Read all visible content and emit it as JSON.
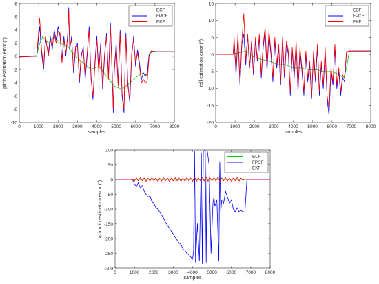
{
  "chart_data": [
    {
      "type": "line",
      "title": "",
      "xlabel": "samples",
      "ylabel": "pitch estimation error (°)",
      "xlim": [
        0,
        8000
      ],
      "ylim": [
        -10,
        8
      ],
      "xticks": [
        0,
        1000,
        2000,
        3000,
        4000,
        5000,
        6000,
        7000,
        8000
      ],
      "yticks": [
        -10,
        -8,
        -6,
        -4,
        -2,
        0,
        2,
        4,
        6,
        8
      ],
      "grid": false,
      "legend_position": "top-right",
      "series": [
        {
          "name": "ECF",
          "color": "#00cc00",
          "x": [
            0,
            900,
            1000,
            1200,
            1500,
            1800,
            2100,
            2500,
            2900,
            3300,
            3700,
            4100,
            4500,
            4900,
            5300,
            5700,
            6100,
            6400,
            6600,
            6700,
            6900,
            7100,
            8000
          ],
          "y": [
            -0.1,
            0.1,
            1.5,
            3.0,
            2.0,
            3.0,
            2.0,
            1.5,
            0.0,
            -1.0,
            -2.0,
            -1.5,
            -3.0,
            -4.5,
            -5.0,
            -4.0,
            -3.0,
            -2.5,
            -3.0,
            0.3,
            0.8,
            0.7,
            0.7
          ]
        },
        {
          "name": "FPCF",
          "color": "#0000ff",
          "x": [
            0,
            900,
            950,
            1050,
            1150,
            1250,
            1350,
            1500,
            1600,
            1700,
            1800,
            1900,
            2000,
            2100,
            2200,
            2300,
            2400,
            2500,
            2550,
            2600,
            2700,
            2800,
            2900,
            3000,
            3100,
            3200,
            3300,
            3400,
            3500,
            3600,
            3700,
            3800,
            3900,
            4000,
            4100,
            4200,
            4300,
            4400,
            4500,
            4600,
            4700,
            4800,
            4850,
            4900,
            5000,
            5100,
            5200,
            5300,
            5400,
            5500,
            5600,
            5700,
            5800,
            5900,
            6000,
            6100,
            6200,
            6300,
            6400,
            6500,
            6600,
            6700,
            6800,
            7000,
            8000
          ],
          "y": [
            -0.1,
            0.0,
            1.5,
            4.5,
            0.5,
            -2.0,
            2.5,
            0.5,
            3.0,
            1.0,
            4.0,
            2.5,
            4.5,
            3.0,
            -0.5,
            3.0,
            0.0,
            3.5,
            7.4,
            1.0,
            3.0,
            -2.5,
            1.0,
            2.0,
            -4.0,
            0.0,
            1.5,
            -3.5,
            0.0,
            4.5,
            -3.0,
            -6.5,
            -1.0,
            3.0,
            -2.0,
            2.0,
            -5.0,
            0.0,
            3.5,
            -3.0,
            5.0,
            -3.0,
            -8.5,
            -2.0,
            2.0,
            -4.0,
            4.0,
            -6.0,
            -8.5,
            3.5,
            -4.0,
            -7.0,
            0.0,
            3.0,
            -1.5,
            1.0,
            -1.0,
            -3.5,
            -2.5,
            -3.0,
            -2.5,
            0.3,
            0.8,
            0.7,
            0.7
          ]
        },
        {
          "name": "EKF",
          "color": "#ff0000",
          "x": [
            0,
            900,
            950,
            1050,
            1150,
            1250,
            1350,
            1500,
            1600,
            1700,
            1800,
            1900,
            2000,
            2100,
            2200,
            2300,
            2400,
            2500,
            2550,
            2600,
            2700,
            2800,
            2900,
            3000,
            3100,
            3200,
            3300,
            3400,
            3500,
            3600,
            3700,
            3800,
            3900,
            4000,
            4100,
            4200,
            4300,
            4400,
            4500,
            4600,
            4700,
            4800,
            4850,
            4900,
            5000,
            5100,
            5200,
            5300,
            5400,
            5500,
            5600,
            5700,
            5800,
            5900,
            6000,
            6100,
            6200,
            6300,
            6400,
            6500,
            6600,
            6700,
            6800,
            7000,
            8000
          ],
          "y": [
            -0.1,
            0.0,
            2.0,
            5.8,
            1.0,
            -1.5,
            3.0,
            0.0,
            2.5,
            1.5,
            3.5,
            2.0,
            3.8,
            3.5,
            -1.0,
            2.5,
            0.5,
            3.0,
            7.0,
            1.5,
            2.5,
            -2.0,
            1.5,
            1.5,
            -3.5,
            0.5,
            1.0,
            -3.0,
            0.5,
            4.0,
            -3.5,
            -6.0,
            -1.5,
            2.5,
            -2.5,
            1.5,
            -4.5,
            0.5,
            3.0,
            -3.5,
            4.5,
            -3.5,
            -8.0,
            -2.5,
            1.5,
            -4.5,
            3.5,
            -5.5,
            -8.0,
            3.0,
            -4.5,
            -6.5,
            0.5,
            2.5,
            -1.0,
            0.5,
            -1.5,
            -4.0,
            -3.5,
            -4.0,
            -3.8,
            0.0,
            0.8,
            0.7,
            0.7
          ]
        }
      ]
    },
    {
      "type": "line",
      "title": "",
      "xlabel": "samples",
      "ylabel": "roll estimation error (°)",
      "xlim": [
        0,
        8000
      ],
      "ylim": [
        -20,
        15
      ],
      "xticks": [
        0,
        1000,
        2000,
        3000,
        4000,
        5000,
        6000,
        7000,
        8000
      ],
      "yticks": [
        -20,
        -15,
        -10,
        -5,
        0,
        5,
        10,
        15
      ],
      "grid": false,
      "legend_position": "top-right",
      "series": [
        {
          "name": "ECF",
          "color": "#00cc00",
          "x": [
            0,
            900,
            1200,
            1600,
            2000,
            2400,
            2800,
            3200,
            3600,
            4000,
            4400,
            4800,
            5200,
            5600,
            6000,
            6400,
            6600,
            6750,
            6900,
            7100,
            8000
          ],
          "y": [
            0.0,
            0.2,
            0.5,
            1.0,
            -1.0,
            -1.5,
            -2.0,
            -3.0,
            -3.0,
            -4.0,
            -4.0,
            -4.5,
            -4.5,
            -5.0,
            -5.0,
            -6.0,
            -7.0,
            -4.0,
            1.0,
            1.0,
            1.0
          ]
        },
        {
          "name": "FPCF",
          "color": "#0000ff",
          "x": [
            0,
            900,
            950,
            1050,
            1150,
            1250,
            1350,
            1450,
            1550,
            1650,
            1750,
            1850,
            1950,
            2050,
            2150,
            2250,
            2350,
            2450,
            2550,
            2650,
            2750,
            2850,
            2950,
            3050,
            3150,
            3250,
            3350,
            3450,
            3550,
            3650,
            3750,
            3850,
            3950,
            4050,
            4150,
            4250,
            4350,
            4450,
            4550,
            4650,
            4750,
            4850,
            4950,
            5050,
            5150,
            5250,
            5350,
            5450,
            5550,
            5650,
            5750,
            5850,
            5950,
            6050,
            6150,
            6250,
            6350,
            6450,
            6550,
            6650,
            6750,
            6900,
            8000
          ],
          "y": [
            0.0,
            0.0,
            4.0,
            -6.0,
            5.0,
            -9.0,
            3.0,
            6.0,
            -3.0,
            5.5,
            -4.0,
            3.0,
            -6.0,
            4.0,
            -2.0,
            5.0,
            -7.0,
            2.0,
            7.0,
            -5.0,
            6.0,
            0.0,
            -8.0,
            4.0,
            -4.0,
            2.0,
            -9.0,
            4.0,
            -7.0,
            3.0,
            0.0,
            -12.0,
            1.0,
            -7.0,
            3.0,
            -11.0,
            1.0,
            -5.0,
            -12.0,
            0.0,
            -8.0,
            -3.0,
            -13.0,
            0.0,
            -8.0,
            2.0,
            -12.0,
            -3.0,
            -10.0,
            1.0,
            -13.0,
            -18.0,
            -5.0,
            -9.0,
            2.0,
            -10.0,
            -5.0,
            -12.0,
            -7.0,
            -8.0,
            0.5,
            1.0,
            1.0
          ]
        },
        {
          "name": "EKF",
          "color": "#ff0000",
          "x": [
            0,
            900,
            950,
            1050,
            1150,
            1250,
            1350,
            1450,
            1550,
            1650,
            1750,
            1850,
            1950,
            2050,
            2150,
            2250,
            2350,
            2450,
            2550,
            2650,
            2750,
            2850,
            2950,
            3050,
            3150,
            3250,
            3350,
            3450,
            3550,
            3650,
            3750,
            3850,
            3950,
            4050,
            4150,
            4250,
            4350,
            4450,
            4550,
            4650,
            4750,
            4850,
            4950,
            5050,
            5150,
            5250,
            5350,
            5450,
            5550,
            5650,
            5750,
            5850,
            5950,
            6050,
            6150,
            6250,
            6350,
            6450,
            6550,
            6650,
            6750,
            6900,
            8000
          ],
          "y": [
            0.0,
            0.0,
            5.0,
            -5.0,
            6.0,
            -8.0,
            4.0,
            12.0,
            -2.0,
            6.0,
            -3.5,
            4.0,
            -5.0,
            5.0,
            -1.5,
            6.0,
            -6.0,
            3.0,
            8.0,
            -4.0,
            7.0,
            1.0,
            -7.0,
            5.0,
            -3.0,
            3.0,
            -8.0,
            5.0,
            -6.0,
            4.0,
            1.0,
            -11.0,
            2.0,
            -6.0,
            4.0,
            -10.0,
            2.0,
            -4.0,
            -11.0,
            1.0,
            -7.0,
            -2.0,
            -12.0,
            1.0,
            -7.0,
            3.0,
            -11.0,
            -2.0,
            -9.0,
            2.0,
            -12.0,
            -16.0,
            -4.0,
            -8.0,
            3.0,
            -9.0,
            -4.0,
            -11.0,
            -6.0,
            -7.0,
            0.8,
            1.0,
            1.0
          ]
        }
      ]
    },
    {
      "type": "line",
      "title": "",
      "xlabel": "samples",
      "ylabel": "azimuth estimation error (°)",
      "xlim": [
        0,
        8000
      ],
      "ylim": [
        -300,
        100
      ],
      "xticks": [
        0,
        1000,
        2000,
        3000,
        4000,
        5000,
        6000,
        7000,
        8000
      ],
      "yticks": [
        -300,
        -250,
        -200,
        -150,
        -100,
        -50,
        0,
        50,
        100
      ],
      "grid": false,
      "legend_position": "top-right",
      "series": [
        {
          "name": "ECF",
          "color": "#00cc00",
          "x": [
            0,
            1000,
            2000,
            3000,
            4000,
            5000,
            6000,
            7000,
            8000
          ],
          "y": [
            0,
            0,
            0,
            0,
            0,
            0,
            0,
            0,
            0
          ]
        },
        {
          "name": "FPCF",
          "color": "#0000ff",
          "x": [
            0,
            900,
            1000,
            1100,
            1200,
            1300,
            1400,
            1500,
            1600,
            1700,
            1800,
            1900,
            2000,
            2100,
            2200,
            2300,
            2400,
            2500,
            2600,
            2700,
            2800,
            2900,
            3000,
            3100,
            3200,
            3300,
            3400,
            3500,
            3600,
            3700,
            3800,
            3900,
            4000,
            4050,
            4100,
            4150,
            4250,
            4350,
            4450,
            4500,
            4550,
            4650,
            4700,
            4750,
            4850,
            4950,
            5050,
            5100,
            5150,
            5250,
            5350,
            5400,
            5450,
            5500,
            5600,
            5700,
            5800,
            5900,
            6000,
            6100,
            6200,
            6300,
            6400,
            6500,
            6600,
            6700,
            6800,
            6900,
            8000
          ],
          "y": [
            0,
            0,
            -15,
            -25,
            -10,
            -30,
            -20,
            -40,
            -50,
            -60,
            -55,
            -75,
            -80,
            -95,
            -100,
            -110,
            -120,
            -130,
            -145,
            -155,
            -165,
            -175,
            -185,
            -195,
            -205,
            -215,
            -220,
            -235,
            -240,
            -250,
            -255,
            -262,
            -270,
            -240,
            95,
            -280,
            -150,
            -275,
            90,
            -285,
            95,
            100,
            -280,
            100,
            50,
            -250,
            -80,
            -60,
            -90,
            -70,
            -275,
            60,
            -110,
            -70,
            -80,
            -40,
            -60,
            -80,
            -70,
            -100,
            -110,
            -95,
            -110,
            -105,
            -110,
            -110,
            0,
            0,
            0
          ]
        },
        {
          "name": "EKF",
          "color": "#ff0000",
          "x": [
            0,
            900,
            1000,
            1100,
            1200,
            1300,
            1400,
            1500,
            1600,
            1700,
            1800,
            1900,
            2000,
            2100,
            2200,
            2300,
            2400,
            2500,
            2600,
            2700,
            2800,
            2900,
            3000,
            3100,
            3200,
            3300,
            3400,
            3500,
            3600,
            3700,
            3800,
            3900,
            4000,
            4100,
            4200,
            4300,
            4400,
            4500,
            4600,
            4700,
            4800,
            4900,
            5000,
            5100,
            5200,
            5300,
            5400,
            5500,
            5600,
            5700,
            5800,
            5900,
            6000,
            6100,
            6200,
            6300,
            6400,
            6500,
            6600,
            6700,
            6800,
            6900,
            8000
          ],
          "y": [
            0,
            0,
            -5,
            5,
            -5,
            6,
            -4,
            5,
            -6,
            4,
            -5,
            6,
            -4,
            5,
            -6,
            4,
            -5,
            6,
            -4,
            5,
            -6,
            4,
            -5,
            6,
            -4,
            5,
            -6,
            4,
            -5,
            6,
            -4,
            5,
            -6,
            8,
            -6,
            5,
            -4,
            6,
            -5,
            8,
            -6,
            5,
            -4,
            6,
            -5,
            8,
            -6,
            5,
            -4,
            6,
            -5,
            4,
            -6,
            5,
            -4,
            6,
            -5,
            4,
            -3,
            2,
            0,
            0,
            0
          ]
        }
      ]
    }
  ]
}
